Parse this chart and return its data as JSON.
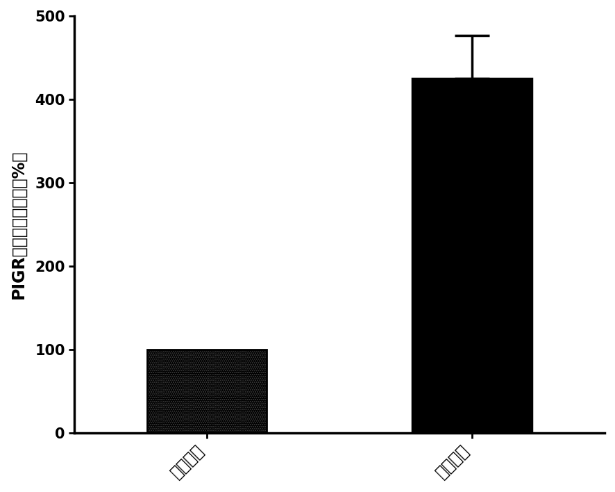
{
  "categories": [
    "正常组织",
    "舌癌组织"
  ],
  "values": [
    100,
    425
  ],
  "errors": [
    0,
    52
  ],
  "ylabel": "PIGR蛋白相对表达量（%）",
  "ylim": [
    0,
    500
  ],
  "yticks": [
    0,
    100,
    200,
    300,
    400,
    500
  ],
  "bar_width": 0.45,
  "background_color": "#ffffff",
  "ylabel_fontsize": 17,
  "tick_fontsize": 15,
  "xlabel_fontsize": 17
}
